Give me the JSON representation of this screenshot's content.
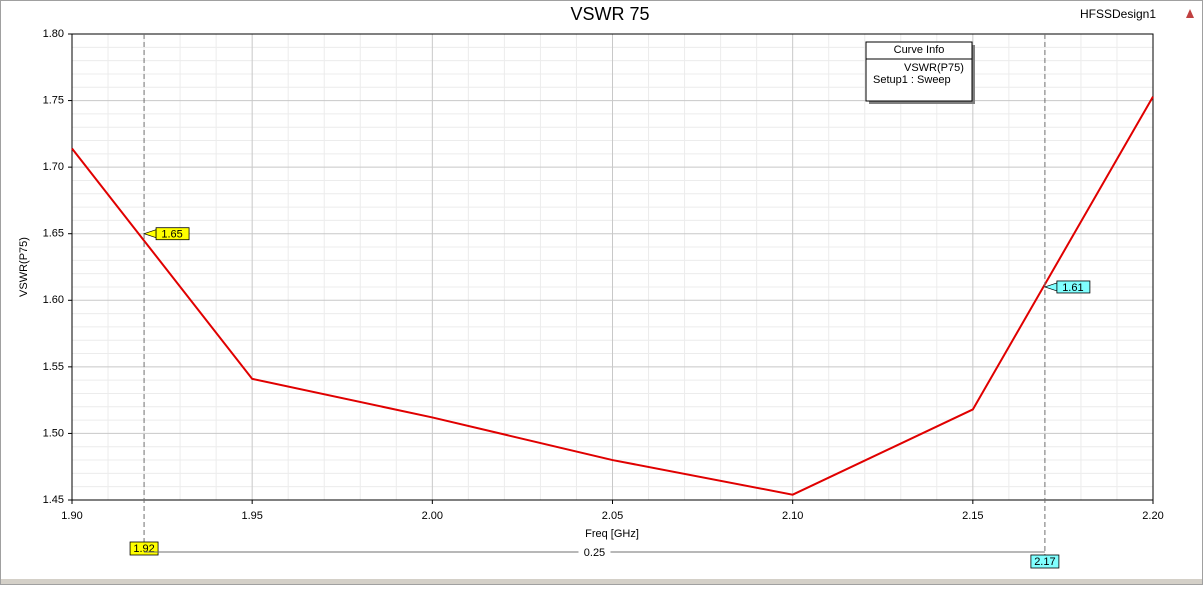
{
  "chart_data": {
    "type": "line",
    "title": "VSWR 75",
    "design": "HFSSDesign1",
    "xlabel": "Freq [GHz]",
    "ylabel": "VSWR(P75)",
    "x": [
      1.9,
      1.95,
      2.0,
      2.05,
      2.1,
      2.15,
      2.2
    ],
    "series": [
      {
        "name": "VSWR(P75)",
        "color": "#e00000",
        "values": [
          1.714,
          1.541,
          1.512,
          1.48,
          1.454,
          1.518,
          1.753
        ]
      }
    ],
    "legend_title": "Curve Info",
    "legend_subtitle": "Setup1 : Sweep",
    "xlim": [
      1.9,
      2.2
    ],
    "xticks": [
      {
        "value": 1.9,
        "label": "1.90"
      },
      1.95,
      {
        "value": 2.0,
        "label": "2.00"
      },
      2.05,
      {
        "value": 2.1,
        "label": "2.10"
      },
      2.15,
      {
        "value": 2.2,
        "label": "2.20"
      }
    ],
    "ylim": [
      1.45,
      1.8
    ],
    "yticks": [
      1.45,
      {
        "value": 1.5,
        "label": "1.50"
      },
      1.55,
      {
        "value": 1.6,
        "label": "1.60"
      },
      1.65,
      {
        "value": 1.7,
        "label": "1.70"
      },
      1.75,
      {
        "value": 1.8,
        "label": "1.80"
      }
    ],
    "grid": true,
    "markers": [
      {
        "x": 1.92,
        "value": 1.65,
        "color": "#ffff00"
      },
      {
        "x": 2.17,
        "value": 1.61,
        "color": "#80ffff"
      }
    ],
    "marker_delta": 0.25
  }
}
